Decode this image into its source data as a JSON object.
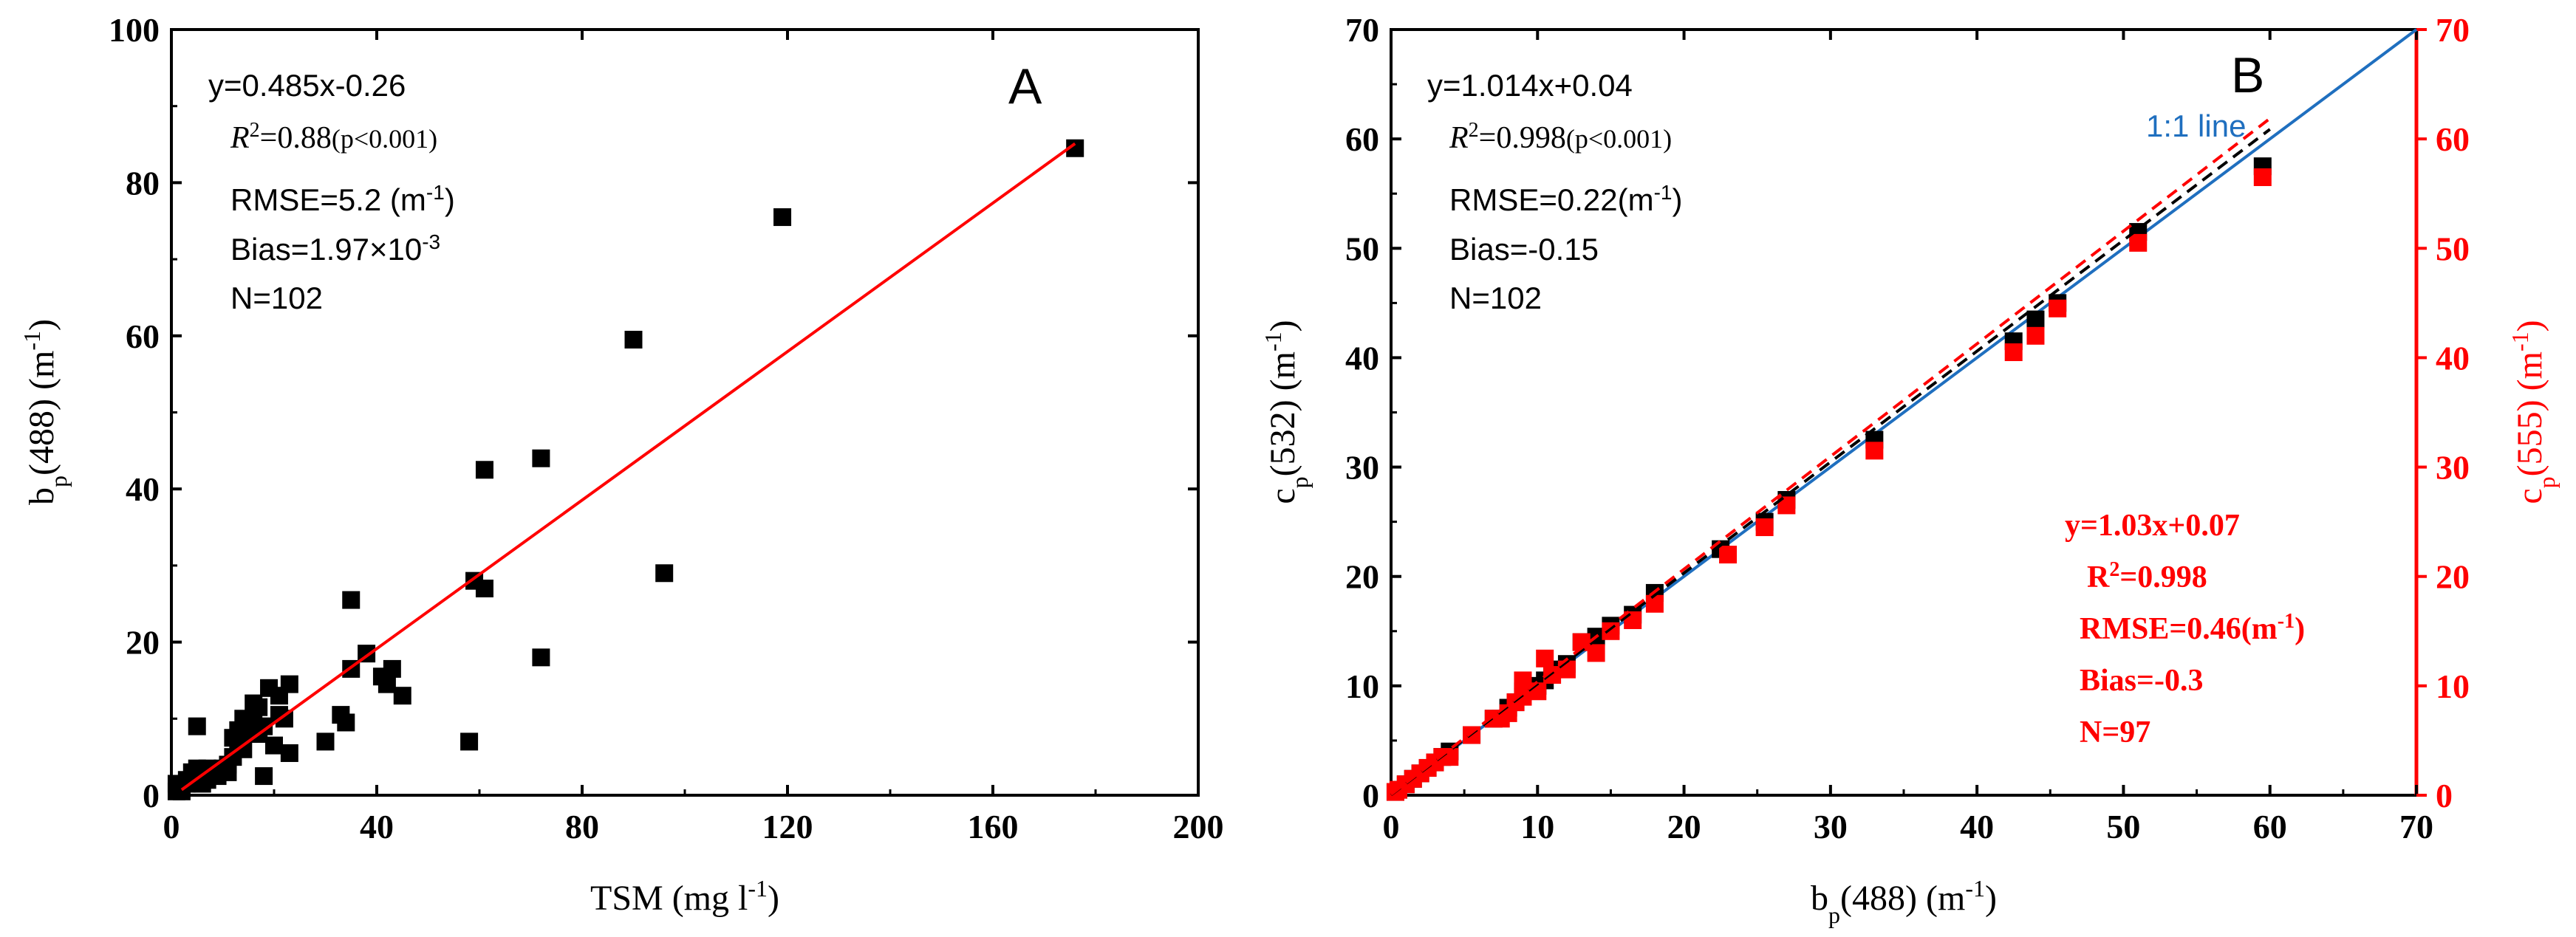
{
  "colors": {
    "axis": "#000000",
    "red": "#ff0000",
    "blue": "#1f6fbf",
    "points": "#000000"
  },
  "chart_data": [
    {
      "panel_label": "A",
      "type": "scatter",
      "xlabel": "TSM (mg l",
      "xlabel_sup": "-1",
      "xlabel_end": ")",
      "ylabel": "b",
      "ylabel_sub": "p",
      "ylabel_rest": "(488) (m",
      "ylabel_sup": "-1",
      "ylabel_end": ")",
      "xlim": [
        0,
        200
      ],
      "ylim": [
        0,
        100
      ],
      "xticks": [
        "0",
        "40",
        "80",
        "120",
        "160",
        "200"
      ],
      "yticks": [
        "0",
        "20",
        "40",
        "60",
        "80",
        "100"
      ],
      "fit": {
        "slope": 0.485,
        "intercept": -0.26,
        "x_range": [
          2,
          176
        ]
      },
      "stats": {
        "eq": "y=0.485x-0.26",
        "r2_value": "=0.88",
        "r2_p": "(p<0.001)",
        "rmse": "RMSE=5.2 (m",
        "rmse_sup": "-1",
        "rmse_end": ")",
        "bias": "Bias=1.97×10",
        "bias_sup": "-3",
        "n": "N=102"
      },
      "points": [
        [
          176,
          84.5
        ],
        [
          119,
          75.5
        ],
        [
          90,
          59.5
        ],
        [
          72,
          44
        ],
        [
          61,
          42.5
        ],
        [
          96,
          29
        ],
        [
          59,
          28
        ],
        [
          61,
          27
        ],
        [
          72,
          18
        ],
        [
          58,
          7
        ],
        [
          35,
          25.5
        ],
        [
          38,
          18.5
        ],
        [
          35,
          16.5
        ],
        [
          43,
          16.5
        ],
        [
          41,
          15.5
        ],
        [
          42,
          14.5
        ],
        [
          45,
          13
        ],
        [
          33,
          10.5
        ],
        [
          34,
          9.5
        ],
        [
          30,
          7
        ],
        [
          23,
          14.5
        ],
        [
          19,
          14
        ],
        [
          21,
          13
        ],
        [
          16,
          12
        ],
        [
          17,
          11.5
        ],
        [
          21,
          10.5
        ],
        [
          22,
          10
        ],
        [
          14,
          10
        ],
        [
          16,
          9.5
        ],
        [
          18,
          9
        ],
        [
          13,
          8.5
        ],
        [
          15,
          8
        ],
        [
          12,
          7.5
        ],
        [
          17,
          8
        ],
        [
          13,
          6.5
        ],
        [
          20,
          6.5
        ],
        [
          23,
          5.5
        ],
        [
          18,
          2.5
        ],
        [
          5,
          9
        ],
        [
          11,
          3
        ],
        [
          7,
          3.5
        ],
        [
          5,
          3.5
        ],
        [
          9,
          3
        ],
        [
          8,
          3
        ],
        [
          6,
          2.5
        ],
        [
          4,
          2
        ],
        [
          3,
          1.5
        ],
        [
          2,
          1
        ],
        [
          1,
          0.5
        ],
        [
          1,
          1.5
        ],
        [
          6,
          1.5
        ],
        [
          4,
          3
        ],
        [
          3,
          2
        ],
        [
          2,
          0.5
        ],
        [
          7,
          2
        ],
        [
          9,
          2.5
        ],
        [
          10,
          3.5
        ],
        [
          11,
          4
        ],
        [
          12,
          5
        ],
        [
          14,
          6
        ]
      ]
    },
    {
      "panel_label": "B",
      "type": "scatter",
      "xlabel": "b",
      "xlabel_sub": "p",
      "xlabel_rest": "(488) (m",
      "xlabel_sup": "-1",
      "xlabel_end": ")",
      "ylabel": "c",
      "ylabel_sub": "p",
      "ylabel_rest": "(532) (m",
      "ylabel_sup": "-1",
      "ylabel_end": ")",
      "ylabel_right": "c",
      "ylabel_right_sub": "p",
      "ylabel_right_rest": "(555) (m",
      "ylabel_right_sup": "-1",
      "ylabel_right_end": ")",
      "xlim": [
        0,
        70
      ],
      "ylim": [
        0,
        70
      ],
      "xticks": [
        "0",
        "10",
        "20",
        "30",
        "40",
        "50",
        "60",
        "70"
      ],
      "yticks": [
        "0",
        "10",
        "20",
        "30",
        "40",
        "50",
        "60",
        "70"
      ],
      "one_to_one_label": "1:1 line",
      "series": [
        {
          "name": "c_p(532)",
          "color": "#000000",
          "fit": {
            "slope": 1.014,
            "intercept": 0.04,
            "x_range": [
              0,
              60
            ]
          },
          "stats": {
            "eq": "y=1.014x+0.04",
            "r2_value": "=0.998",
            "r2_p": "(p<0.001)",
            "rmse": "RMSE=0.22(m",
            "rmse_sup": "-1",
            "rmse_end": ")",
            "bias": "Bias=-0.15",
            "n": "N=102"
          },
          "points": [
            [
              59.5,
              57.5
            ],
            [
              51,
              51.5
            ],
            [
              45.5,
              45
            ],
            [
              44,
              43.5
            ],
            [
              42.5,
              41.5
            ],
            [
              33,
              32.5
            ],
            [
              27,
              27
            ],
            [
              25.5,
              25
            ],
            [
              22.5,
              22.5
            ],
            [
              18,
              18.5
            ],
            [
              16.5,
              16.5
            ],
            [
              15,
              15.5
            ],
            [
              14,
              14.5
            ],
            [
              13,
              14
            ],
            [
              12,
              12
            ],
            [
              11,
              11.5
            ],
            [
              10.5,
              10.5
            ],
            [
              10,
              10
            ],
            [
              9,
              9.5
            ],
            [
              8.5,
              8.5
            ],
            [
              8,
              8
            ],
            [
              7,
              7
            ],
            [
              5.5,
              5.5
            ],
            [
              4,
              4
            ],
            [
              3.5,
              3.5
            ],
            [
              3,
              3
            ],
            [
              2.5,
              2.5
            ],
            [
              2,
              2
            ],
            [
              1.5,
              1.5
            ],
            [
              1,
              1
            ],
            [
              0.5,
              0.5
            ],
            [
              0.3,
              0.3
            ]
          ]
        },
        {
          "name": "c_p(555)",
          "color": "#ff0000",
          "fit": {
            "slope": 1.03,
            "intercept": 0.07,
            "x_range": [
              0,
              60
            ]
          },
          "stats": {
            "eq": "y=1.03x+0.07",
            "r2_value": "=0.998",
            "rmse": "RMSE=0.46(m",
            "rmse_sup": "-1",
            "rmse_end": ")",
            "bias": "Bias=-0.3",
            "n": "N=97"
          },
          "points": [
            [
              59.5,
              56.5
            ],
            [
              51,
              50.5
            ],
            [
              45.5,
              44.5
            ],
            [
              44,
              42
            ],
            [
              42.5,
              40.5
            ],
            [
              33,
              31.5
            ],
            [
              27,
              26.5
            ],
            [
              25.5,
              24.5
            ],
            [
              23,
              22
            ],
            [
              18,
              17.5
            ],
            [
              16.5,
              16
            ],
            [
              15,
              15
            ],
            [
              14,
              13
            ],
            [
              13,
              14
            ],
            [
              12,
              11.5
            ],
            [
              11,
              11
            ],
            [
              10.5,
              12.5
            ],
            [
              10,
              9.5
            ],
            [
              9,
              10.5
            ],
            [
              9,
              9
            ],
            [
              8.5,
              8.5
            ],
            [
              8,
              7.5
            ],
            [
              7.5,
              7
            ],
            [
              7,
              7
            ],
            [
              5.5,
              5.5
            ],
            [
              4,
              3.5
            ],
            [
              3.5,
              3.5
            ],
            [
              3,
              3
            ],
            [
              2.5,
              2.5
            ],
            [
              2,
              2
            ],
            [
              1.5,
              1.5
            ],
            [
              1,
              1
            ],
            [
              0.5,
              0.5
            ],
            [
              0.3,
              0.3
            ]
          ]
        }
      ]
    }
  ]
}
